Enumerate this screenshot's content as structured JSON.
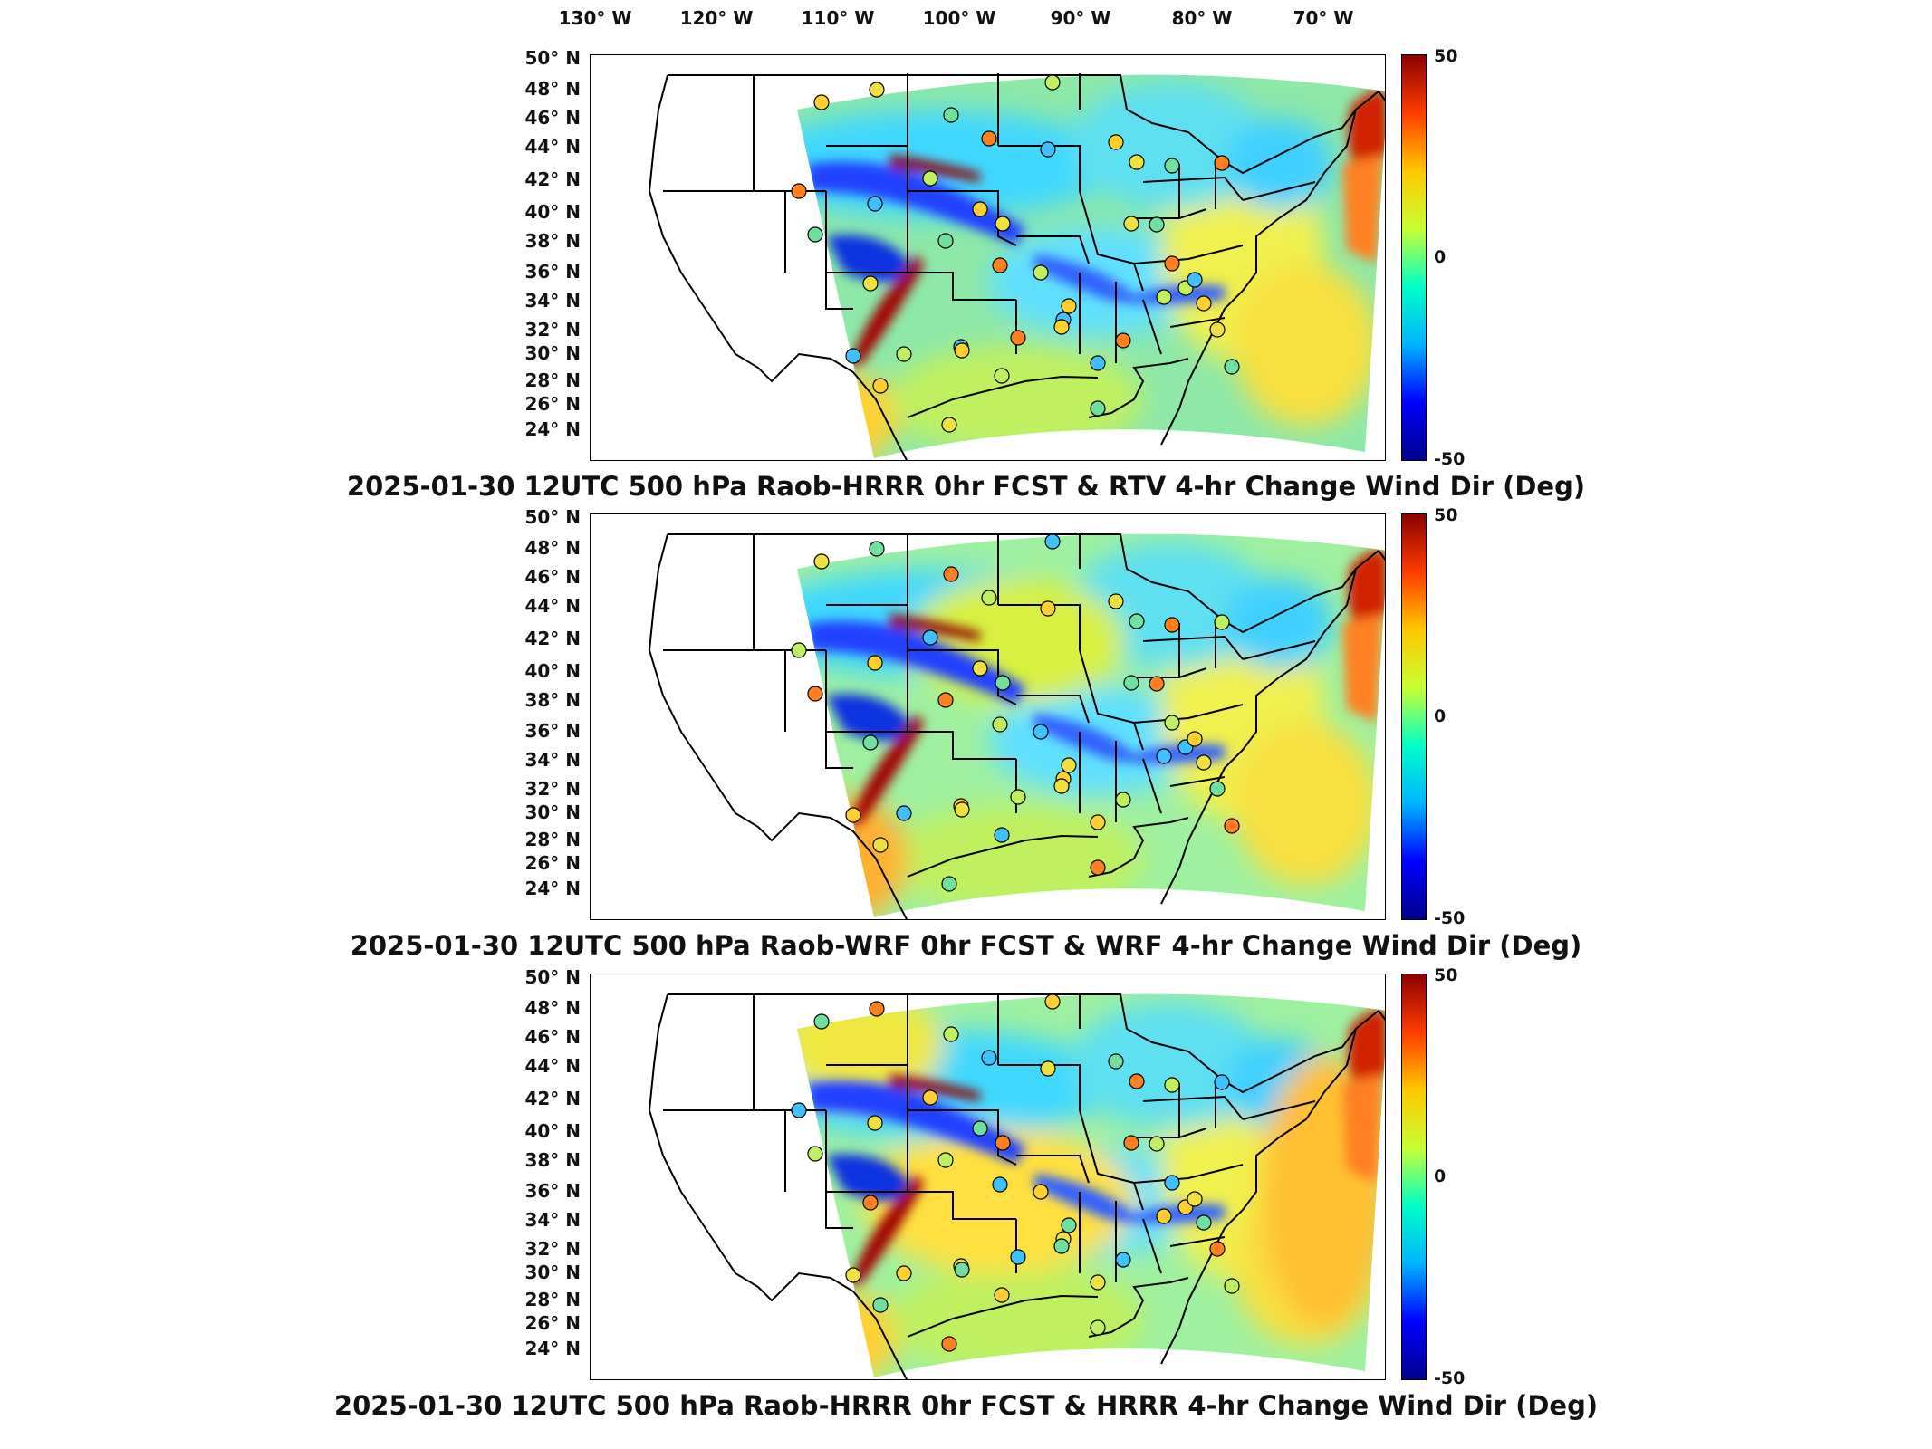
{
  "longitude_labels": [
    "130° W",
    "120° W",
    "110° W",
    "100° W",
    "90° W",
    "80° W",
    "70° W"
  ],
  "latitude_labels": [
    "50° N",
    "48° N",
    "46° N",
    "44° N",
    "42° N",
    "40° N",
    "38° N",
    "36° N",
    "34° N",
    "32° N",
    "30° N",
    "28° N",
    "26° N",
    "24° N"
  ],
  "colorbar": {
    "max_label": "50",
    "mid_label": "0",
    "min_label": "-50",
    "colors": [
      "#00008b",
      "#0000ff",
      "#00b4ff",
      "#00ffc8",
      "#c8ff32",
      "#ffc800",
      "#ff3c00",
      "#8b0000"
    ]
  },
  "panels": [
    {
      "title": "2025-01-30 12UTC 500 hPa Raob-HRRR 0hr FCST & RTV 4-hr Change Wind Dir (Deg)"
    },
    {
      "title": "2025-01-30 12UTC 500 hPa Raob-WRF 0hr FCST & WRF 4-hr Change Wind Dir (Deg)"
    },
    {
      "title": "2025-01-30 12UTC 500 hPa Raob-HRRR 0hr FCST & HRRR 4-hr Change Wind Dir (Deg)"
    }
  ]
}
